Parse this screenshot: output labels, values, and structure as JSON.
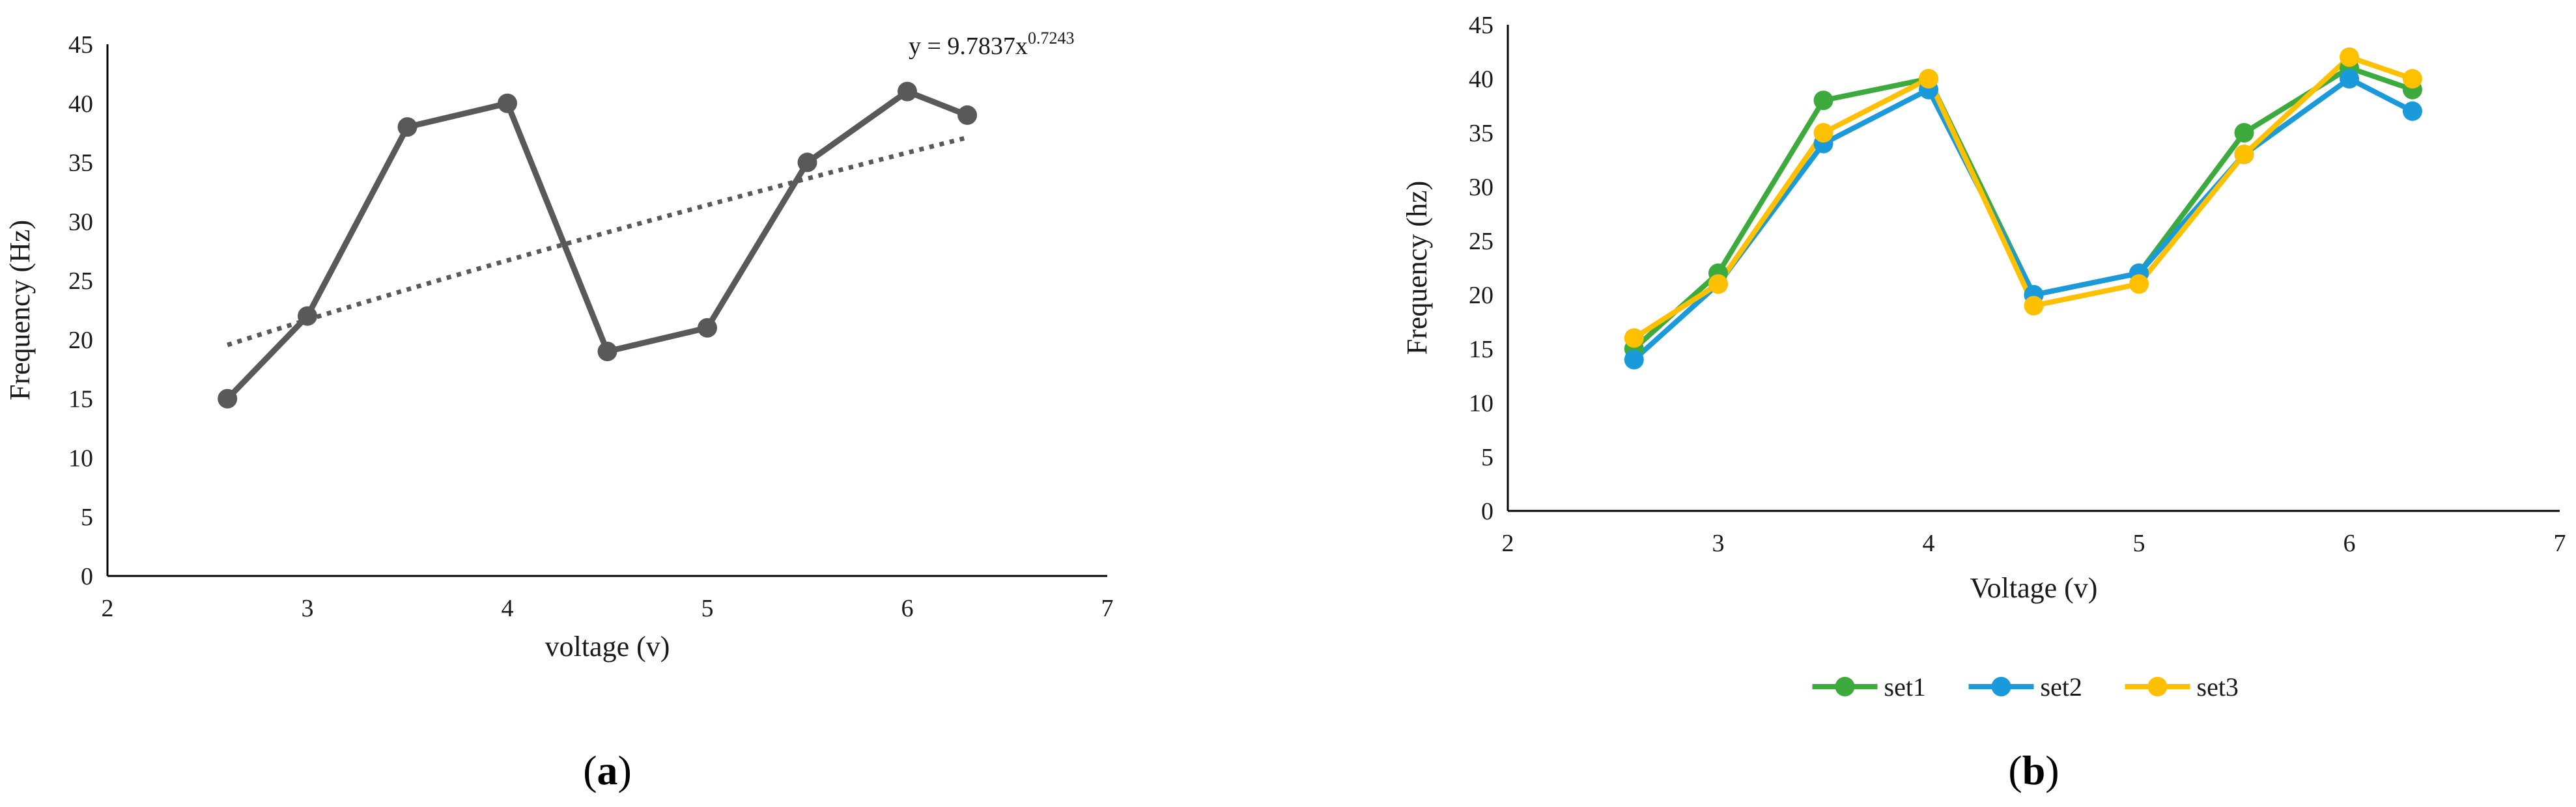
{
  "chart_data": [
    {
      "type": "line",
      "panel_label": "(a)",
      "xlabel": "voltage (v)",
      "ylabel": "Frequency (Hz)",
      "xlim": [
        2,
        7
      ],
      "ylim": [
        0,
        45
      ],
      "xticks": [
        2,
        3,
        4,
        5,
        6,
        7
      ],
      "yticks": [
        0,
        5,
        10,
        15,
        20,
        25,
        30,
        35,
        40,
        45
      ],
      "grid": false,
      "series": [
        {
          "color": "#595959",
          "x": [
            2.6,
            3.0,
            3.5,
            4.0,
            4.5,
            5.0,
            5.5,
            6.0,
            6.3
          ],
          "y": [
            15,
            22,
            38,
            40,
            19,
            21,
            35,
            41,
            39
          ]
        }
      ],
      "trendline": {
        "type": "power",
        "coef": 9.7837,
        "exponent": 0.7243,
        "x_range": [
          2.6,
          6.3
        ],
        "color": "#595959",
        "label": "y = 9.7837x",
        "label_exponent": "0.7243"
      }
    },
    {
      "type": "line",
      "panel_label": "(b)",
      "xlabel": "Voltage (v)",
      "ylabel": "Frequency (hz)",
      "xlim": [
        2,
        7
      ],
      "ylim": [
        0,
        45
      ],
      "xticks": [
        2,
        3,
        4,
        5,
        6,
        7
      ],
      "yticks": [
        0,
        5,
        10,
        15,
        20,
        25,
        30,
        35,
        40,
        45
      ],
      "grid": false,
      "legend": "bottom",
      "series": [
        {
          "name": "set1",
          "color": "#3DAA3D",
          "x": [
            2.6,
            3.0,
            3.5,
            4.0,
            4.5,
            5.0,
            5.5,
            6.0,
            6.3
          ],
          "y": [
            15,
            22,
            38,
            40,
            20,
            22,
            35,
            41,
            39
          ]
        },
        {
          "name": "set2",
          "color": "#1A9ADB",
          "x": [
            2.6,
            3.0,
            3.5,
            4.0,
            4.5,
            5.0,
            5.5,
            6.0,
            6.3
          ],
          "y": [
            14,
            21,
            34,
            39,
            20,
            22,
            33,
            40,
            37
          ]
        },
        {
          "name": "set3",
          "color": "#FFC000",
          "x": [
            2.6,
            3.0,
            3.5,
            4.0,
            4.5,
            5.0,
            5.5,
            6.0,
            6.3
          ],
          "y": [
            16,
            21,
            35,
            40,
            19,
            21,
            33,
            42,
            40
          ]
        }
      ]
    }
  ]
}
